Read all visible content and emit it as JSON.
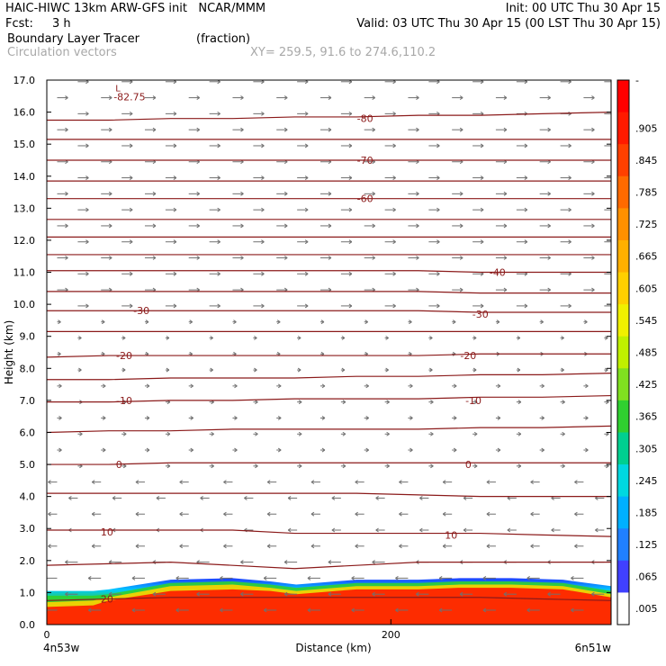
{
  "header": {
    "model": "HAIC-HIWC 13km ARW-GFS init   NCAR/MMM",
    "init": "Init: 00 UTC Thu 30 Apr 15",
    "fcst_label": "Fcst:",
    "fcst_value": "3 h",
    "valid": "Valid: 03 UTC Thu 30 Apr 15 (00 LST Thu 30 Apr 15)",
    "field": "Boundary Layer Tracer",
    "field_units": "(fraction)",
    "vectors": "Circulation vectors",
    "xy": "XY= 259.5, 91.6 to 274.6,110.2"
  },
  "colors": {
    "contour": "#8b1a1a",
    "vector": "#707070",
    "scale": [
      "#ffffff",
      "#4040ff",
      "#2080ff",
      "#00b0ff",
      "#00d8e0",
      "#00d090",
      "#30d030",
      "#80e020",
      "#c0f000",
      "#f0f000",
      "#ffd000",
      "#ffb000",
      "#ff9000",
      "#ff6a00",
      "#ff4000",
      "#ff1a00",
      "#ff0000"
    ]
  },
  "chart_data": {
    "type": "heatmap",
    "title": "Boundary Layer Tracer",
    "xlabel": "Distance (km)",
    "ylabel": "Height (km)",
    "xlim": [
      0,
      328
    ],
    "ylim": [
      0,
      17
    ],
    "x_ticks": [
      0,
      200
    ],
    "y_ticks": [
      "0.0",
      "1.0",
      "2.0",
      "3.0",
      "4.0",
      "5.0",
      "6.0",
      "7.0",
      "8.0",
      "9.0",
      "10.0",
      "11.0",
      "12.0",
      "13.0",
      "14.0",
      "15.0",
      "16.0",
      "17.0"
    ],
    "x_endpoints": {
      "left": "4n53w",
      "right": "6n51w"
    },
    "colorbar_labels": [
      "-",
      ".905",
      ".845",
      ".785",
      ".725",
      ".665",
      ".605",
      ".545",
      ".485",
      ".425",
      ".365",
      ".305",
      ".245",
      ".185",
      ".125",
      ".065",
      ".005"
    ],
    "contour_labels": [
      {
        "text": "-80",
        "x": 185,
        "y": 15.8
      },
      {
        "text": "-70",
        "x": 185,
        "y": 14.5
      },
      {
        "text": "-60",
        "x": 185,
        "y": 13.3
      },
      {
        "text": "-40",
        "x": 262,
        "y": 11.0
      },
      {
        "text": "-30",
        "x": 55,
        "y": 9.8
      },
      {
        "text": "-30",
        "x": 252,
        "y": 9.7
      },
      {
        "text": "-20",
        "x": 45,
        "y": 8.4
      },
      {
        "text": "-20",
        "x": 245,
        "y": 8.4
      },
      {
        "text": "-10",
        "x": 45,
        "y": 7.0
      },
      {
        "text": "-10",
        "x": 248,
        "y": 7.0
      },
      {
        "text": "0",
        "x": 42,
        "y": 5.0
      },
      {
        "text": "0",
        "x": 245,
        "y": 5.0
      },
      {
        "text": "10",
        "x": 35,
        "y": 2.9
      },
      {
        "text": "10",
        "x": 235,
        "y": 2.8
      },
      {
        "text": "20",
        "x": 35,
        "y": 0.8
      }
    ],
    "min_label": {
      "text": "L",
      "value": "-82.75",
      "x": 43,
      "y": 16.7
    },
    "contours": [
      {
        "level": "20",
        "y": [
          0.75,
          0.8,
          0.85,
          0.85,
          0.85,
          0.85,
          0.85,
          0.85,
          0.8,
          0.75
        ]
      },
      {
        "level": "15",
        "y": [
          1.85,
          1.9,
          1.95,
          1.85,
          1.75,
          1.85,
          1.95,
          1.95,
          1.95,
          1.95
        ]
      },
      {
        "level": "10",
        "y": [
          2.95,
          2.95,
          2.95,
          2.95,
          2.85,
          2.85,
          2.85,
          2.85,
          2.8,
          2.75
        ]
      },
      {
        "level": "5",
        "y": [
          4.1,
          4.1,
          4.1,
          4.1,
          4.1,
          4.1,
          4.05,
          4.0,
          4.0,
          4.0
        ]
      },
      {
        "level": "0",
        "y": [
          5.0,
          5.0,
          5.05,
          5.05,
          5.05,
          5.05,
          5.05,
          5.05,
          5.05,
          5.05
        ]
      },
      {
        "level": "-5",
        "y": [
          6.0,
          6.05,
          6.05,
          6.1,
          6.1,
          6.1,
          6.1,
          6.15,
          6.15,
          6.2
        ]
      },
      {
        "level": "-10",
        "y": [
          6.95,
          6.95,
          7.0,
          7.0,
          7.05,
          7.05,
          7.05,
          7.1,
          7.1,
          7.15
        ]
      },
      {
        "level": "-15",
        "y": [
          7.65,
          7.65,
          7.7,
          7.7,
          7.7,
          7.75,
          7.75,
          7.8,
          7.8,
          7.85
        ]
      },
      {
        "level": "-20",
        "y": [
          8.35,
          8.4,
          8.4,
          8.4,
          8.4,
          8.4,
          8.4,
          8.45,
          8.45,
          8.45
        ]
      },
      {
        "level": "-25",
        "y": [
          9.15,
          9.15,
          9.15,
          9.15,
          9.15,
          9.15,
          9.15,
          9.15,
          9.15,
          9.15
        ]
      },
      {
        "level": "-30",
        "y": [
          9.8,
          9.8,
          9.8,
          9.8,
          9.8,
          9.8,
          9.8,
          9.75,
          9.75,
          9.75
        ]
      },
      {
        "level": "-35",
        "y": [
          10.4,
          10.4,
          10.4,
          10.4,
          10.4,
          10.4,
          10.4,
          10.35,
          10.35,
          10.35
        ]
      },
      {
        "level": "-40",
        "y": [
          11.05,
          11.05,
          11.05,
          11.05,
          11.05,
          11.05,
          11.05,
          11.0,
          11.0,
          11.0
        ]
      },
      {
        "level": "-45",
        "y": [
          11.55,
          11.55,
          11.55,
          11.55,
          11.55,
          11.55,
          11.55,
          11.55,
          11.55,
          11.55
        ]
      },
      {
        "level": "-50",
        "y": [
          12.1,
          12.1,
          12.1,
          12.1,
          12.1,
          12.1,
          12.1,
          12.1,
          12.1,
          12.1
        ]
      },
      {
        "level": "-55",
        "y": [
          12.65,
          12.65,
          12.65,
          12.65,
          12.65,
          12.65,
          12.65,
          12.65,
          12.65,
          12.65
        ]
      },
      {
        "level": "-60",
        "y": [
          13.3,
          13.3,
          13.3,
          13.3,
          13.3,
          13.3,
          13.3,
          13.3,
          13.3,
          13.3
        ]
      },
      {
        "level": "-65",
        "y": [
          13.85,
          13.85,
          13.85,
          13.85,
          13.85,
          13.85,
          13.85,
          13.85,
          13.85,
          13.85
        ]
      },
      {
        "level": "-70",
        "y": [
          14.5,
          14.5,
          14.5,
          14.5,
          14.5,
          14.5,
          14.5,
          14.5,
          14.5,
          14.5
        ]
      },
      {
        "level": "-75",
        "y": [
          15.15,
          15.15,
          15.15,
          15.15,
          15.15,
          15.15,
          15.15,
          15.15,
          15.15,
          15.15
        ]
      },
      {
        "level": "-80",
        "y": [
          15.75,
          15.75,
          15.8,
          15.8,
          15.85,
          15.85,
          15.9,
          15.9,
          15.95,
          16.0
        ]
      }
    ],
    "contour_x": [
      0,
      36,
      72,
      108,
      144,
      180,
      216,
      252,
      288,
      328
    ],
    "tracer_layers": [
      {
        "value": 0.005,
        "top": [
          1.05,
          1.05,
          1.1,
          1.4,
          1.45,
          1.35,
          1.25,
          1.4,
          1.4,
          1.45,
          1.45,
          1.4,
          1.2
        ]
      },
      {
        "value": 0.3,
        "top": [
          0.9,
          0.9,
          0.95,
          1.3,
          1.35,
          1.25,
          1.15,
          1.3,
          1.3,
          1.35,
          1.35,
          1.3,
          1.05
        ]
      },
      {
        "value": 0.6,
        "top": [
          0.7,
          0.75,
          0.85,
          1.2,
          1.25,
          1.15,
          1.05,
          1.2,
          1.2,
          1.25,
          1.25,
          1.2,
          0.95
        ]
      },
      {
        "value": 0.95,
        "top": [
          0.55,
          0.6,
          0.75,
          1.05,
          1.1,
          1.05,
          0.95,
          1.1,
          1.1,
          1.15,
          1.15,
          1.1,
          0.85
        ]
      }
    ],
    "tracer_x": [
      0,
      27,
      36,
      72,
      108,
      130,
      145,
      180,
      216,
      240,
      270,
      300,
      328
    ],
    "grid": false
  }
}
